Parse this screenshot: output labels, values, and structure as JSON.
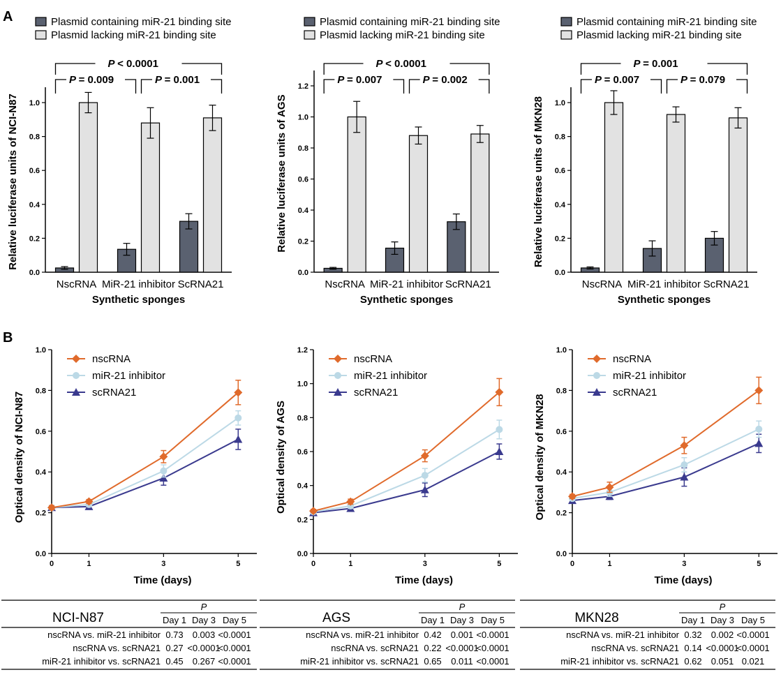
{
  "panel_labels": [
    "A",
    "B"
  ],
  "colors": {
    "dark_bar": "#5a6170",
    "light_bar": "#e2e2e2",
    "nscRNA": "#e06a2b",
    "miR21_inhibitor": "#bcd9e6",
    "scRNA21": "#3a3a8e"
  },
  "chart_data": [
    {
      "type": "bar",
      "panel": "A",
      "legend": [
        "Plasmid containing miR-21 binding site",
        "Plasmid lacking miR-21 binding site"
      ],
      "categories": [
        "NscRNA",
        "MiR-21 inhibitor",
        "ScRNA21"
      ],
      "series": [
        {
          "name": "Plasmid containing miR-21 binding site",
          "values": [
            0.025,
            0.135,
            0.3
          ],
          "errors": [
            0.008,
            0.035,
            0.045
          ]
        },
        {
          "name": "Plasmid lacking miR-21 binding site",
          "values": [
            1.0,
            0.88,
            0.91
          ],
          "errors": [
            0.06,
            0.09,
            0.075
          ]
        }
      ],
      "xlabel": "Synthetic sponges",
      "ylabel": "Relative luciferase units of NCI-N87",
      "ylim": [
        0,
        1.0
      ],
      "yticks": [
        "0.0",
        "0.2",
        "0.4",
        "0.6",
        "0.8",
        "1.0"
      ],
      "annotations": {
        "p12": "= 0.009",
        "p23": "= 0.001",
        "p13": "< 0.0001"
      }
    },
    {
      "type": "bar",
      "panel": "A",
      "legend": [
        "Plasmid containing miR-21 binding site",
        "Plasmid lacking miR-21 binding site"
      ],
      "categories": [
        "NscRNA",
        "MiR-21 inhibitor",
        "ScRNA21"
      ],
      "series": [
        {
          "name": "Plasmid containing miR-21 binding site",
          "values": [
            0.025,
            0.155,
            0.325
          ],
          "errors": [
            0.006,
            0.04,
            0.05
          ]
        },
        {
          "name": "Plasmid lacking miR-21 binding site",
          "values": [
            1.0,
            0.88,
            0.89
          ],
          "errors": [
            0.1,
            0.055,
            0.055
          ]
        }
      ],
      "xlabel": "Synthetic sponges",
      "ylabel": "Relative luciferase units of AGS",
      "ylim": [
        0,
        1.2
      ],
      "yticks": [
        "0.0",
        "0.2",
        "0.4",
        "0.6",
        "0.8",
        "1.0",
        "1.2"
      ],
      "annotations": {
        "p12": "= 0.007",
        "p23": "= 0.002",
        "p13": "< 0.0001"
      }
    },
    {
      "type": "bar",
      "panel": "A",
      "legend": [
        "Plasmid containing miR-21 binding site",
        "Plasmid lacking miR-21 binding site"
      ],
      "categories": [
        "NscRNA",
        "MiR-21 inhibitor",
        "ScRNA21"
      ],
      "series": [
        {
          "name": "Plasmid containing miR-21 binding site",
          "values": [
            0.025,
            0.14,
            0.2
          ],
          "errors": [
            0.006,
            0.045,
            0.04
          ]
        },
        {
          "name": "Plasmid lacking miR-21 binding site",
          "values": [
            1.0,
            0.93,
            0.91
          ],
          "errors": [
            0.07,
            0.045,
            0.06
          ]
        }
      ],
      "xlabel": "Synthetic sponges",
      "ylabel": "Relative luciferase units of MKN28",
      "ylim": [
        0,
        1.0
      ],
      "yticks": [
        "0.0",
        "0.2",
        "0.4",
        "0.6",
        "0.8",
        "1.0"
      ],
      "annotations": {
        "p12": "= 0.007",
        "p23": "= 0.079",
        "p13": "= 0.001"
      }
    },
    {
      "type": "line",
      "panel": "B",
      "x": [
        0,
        1,
        3,
        5
      ],
      "xticks": [
        "0",
        "1",
        "3",
        "5"
      ],
      "series": [
        {
          "name": "nscRNA",
          "values": [
            0.225,
            0.255,
            0.475,
            0.79
          ],
          "errors": [
            0.01,
            0.01,
            0.03,
            0.06
          ]
        },
        {
          "name": "miR-21 inhibitor",
          "values": [
            0.225,
            0.24,
            0.405,
            0.665
          ],
          "errors": [
            0.01,
            0.01,
            0.03,
            0.035
          ]
        },
        {
          "name": "scRNA21",
          "values": [
            0.225,
            0.23,
            0.37,
            0.56
          ],
          "errors": [
            0.01,
            0.01,
            0.035,
            0.05
          ]
        }
      ],
      "xlabel": "Time (days)",
      "ylabel": "Optical density of NCI-N87",
      "xlim": [
        0,
        5.5
      ],
      "ylim": [
        0,
        1.0
      ],
      "yticks": [
        "0.0",
        "0.2",
        "0.4",
        "0.6",
        "0.8",
        "1.0"
      ],
      "legend_position": "top-left"
    },
    {
      "type": "line",
      "panel": "B",
      "x": [
        0,
        1,
        3,
        5
      ],
      "xticks": [
        "0",
        "1",
        "3",
        "5"
      ],
      "series": [
        {
          "name": "nscRNA",
          "values": [
            0.25,
            0.305,
            0.575,
            0.95
          ],
          "errors": [
            0.01,
            0.015,
            0.035,
            0.08
          ]
        },
        {
          "name": "miR-21 inhibitor",
          "values": [
            0.245,
            0.28,
            0.46,
            0.73
          ],
          "errors": [
            0.01,
            0.015,
            0.04,
            0.055
          ]
        },
        {
          "name": "scRNA21",
          "values": [
            0.24,
            0.265,
            0.375,
            0.6
          ],
          "errors": [
            0.01,
            0.015,
            0.04,
            0.045
          ]
        }
      ],
      "xlabel": "Time (days)",
      "ylabel": "Optical density of AGS",
      "xlim": [
        0,
        5.5
      ],
      "ylim": [
        0,
        1.2
      ],
      "yticks": [
        "0.0",
        "0.2",
        "0.4",
        "0.6",
        "0.8",
        "1.0",
        "1.2"
      ],
      "legend_position": "top-left"
    },
    {
      "type": "line",
      "panel": "B",
      "x": [
        0,
        1,
        3,
        5
      ],
      "xticks": [
        "0",
        "1",
        "3",
        "5"
      ],
      "series": [
        {
          "name": "nscRNA",
          "values": [
            0.28,
            0.325,
            0.53,
            0.8
          ],
          "errors": [
            0.01,
            0.025,
            0.04,
            0.065
          ]
        },
        {
          "name": "miR-21 inhibitor",
          "values": [
            0.27,
            0.3,
            0.435,
            0.61
          ],
          "errors": [
            0.01,
            0.02,
            0.035,
            0.04
          ]
        },
        {
          "name": "scRNA21",
          "values": [
            0.26,
            0.28,
            0.375,
            0.54
          ],
          "errors": [
            0.01,
            0.015,
            0.045,
            0.045
          ]
        }
      ],
      "xlabel": "Time (days)",
      "ylabel": "Optical density of MKN28",
      "xlim": [
        0,
        5.5
      ],
      "ylim": [
        0,
        1.0
      ],
      "yticks": [
        "0.0",
        "0.2",
        "0.4",
        "0.6",
        "0.8",
        "1.0"
      ],
      "legend_position": "top-left"
    }
  ],
  "tables": [
    {
      "title": "NCI-N87",
      "p_header": "P",
      "days": [
        "Day 1",
        "Day 3",
        "Day 5"
      ],
      "rows": [
        {
          "label": "nscRNA vs. miR-21 inhibitor",
          "values": [
            "0.73",
            "0.003",
            "<0.0001"
          ]
        },
        {
          "label": "nscRNA vs. scRNA21",
          "values": [
            "0.27",
            "<0.0001",
            "<0.0001"
          ]
        },
        {
          "label": "miR-21 inhibitor vs. scRNA21",
          "values": [
            "0.45",
            "0.267",
            "<0.0001"
          ]
        }
      ]
    },
    {
      "title": "AGS",
      "p_header": "P",
      "days": [
        "Day 1",
        "Day 3",
        "Day 5"
      ],
      "rows": [
        {
          "label": "nscRNA vs. miR-21 inhibitor",
          "values": [
            "0.42",
            "0.001",
            "<0.0001"
          ]
        },
        {
          "label": "nscRNA vs. scRNA21",
          "values": [
            "0.22",
            "<0.0001",
            "<0.0001"
          ]
        },
        {
          "label": "miR-21 inhibitor vs. scRNA21",
          "values": [
            "0.65",
            "0.011",
            "<0.0001"
          ]
        }
      ]
    },
    {
      "title": "MKN28",
      "p_header": "P",
      "days": [
        "Day 1",
        "Day 3",
        "Day 5"
      ],
      "rows": [
        {
          "label": "nscRNA vs. miR-21 inhibitor",
          "values": [
            "0.32",
            "0.002",
            "<0.0001"
          ]
        },
        {
          "label": "nscRNA vs. scRNA21",
          "values": [
            "0.14",
            "<0.0001",
            "<0.0001"
          ]
        },
        {
          "label": "miR-21 inhibitor vs. scRNA21",
          "values": [
            "0.62",
            "0.051",
            "0.021"
          ]
        }
      ]
    }
  ]
}
